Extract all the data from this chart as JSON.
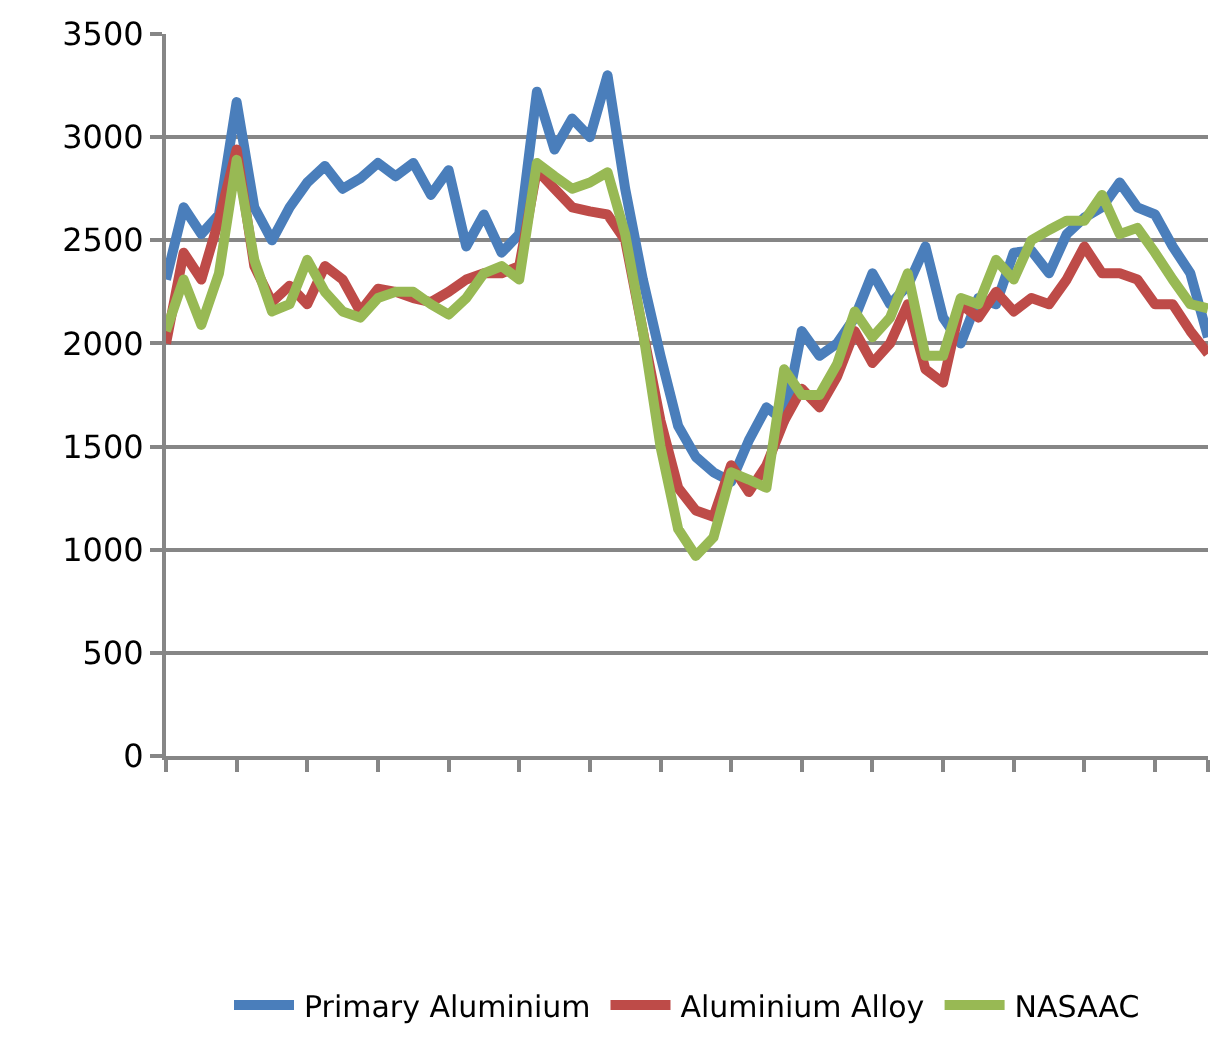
{
  "chart_data": {
    "type": "line",
    "categories": [
      null,
      null,
      null,
      null,
      null,
      null,
      null,
      null,
      null,
      null,
      null,
      null,
      null,
      null,
      null,
      null,
      null,
      null,
      null,
      null,
      null,
      null,
      null,
      null,
      null,
      null,
      null,
      null,
      null,
      null,
      null,
      null,
      null,
      null,
      null,
      null,
      null,
      null,
      null,
      null,
      null,
      null,
      null,
      null,
      null,
      null,
      null,
      null,
      null,
      null,
      null,
      null,
      null,
      null,
      null,
      null,
      null,
      null,
      null,
      null
    ],
    "series": [
      {
        "name": "Primary Aluminium",
        "color": "#4a7ebb",
        "values": [
          2310,
          2660,
          2530,
          2625,
          3170,
          2660,
          2500,
          2660,
          2780,
          2860,
          2750,
          2800,
          2875,
          2810,
          2875,
          2720,
          2840,
          2470,
          2625,
          2440,
          2530,
          3220,
          2940,
          3090,
          3000,
          3300,
          2750,
          2310,
          1940,
          1600,
          1450,
          1375,
          1330,
          1530,
          1690,
          1625,
          2060,
          1940,
          2000,
          2125,
          2340,
          2190,
          2280,
          2470,
          2125,
          2000,
          2220,
          2190,
          2440,
          2450,
          2340,
          2530,
          2610,
          2660,
          2780,
          2660,
          2625,
          2470,
          2340,
          2030
        ]
      },
      {
        "name": "Aluminium Alloy",
        "color": "#be4b48",
        "values": [
          2000,
          2440,
          2310,
          2600,
          2940,
          2375,
          2200,
          2280,
          2190,
          2375,
          2310,
          2155,
          2265,
          2250,
          2220,
          2200,
          2250,
          2310,
          2340,
          2340,
          2375,
          2840,
          2750,
          2660,
          2640,
          2625,
          2500,
          2060,
          1625,
          1300,
          1190,
          1160,
          1410,
          1280,
          1410,
          1625,
          1780,
          1690,
          1840,
          2060,
          1905,
          2000,
          2190,
          1875,
          1810,
          2190,
          2125,
          2250,
          2155,
          2220,
          2190,
          2310,
          2470,
          2340,
          2340,
          2310,
          2190,
          2190,
          2060,
          1950
        ]
      },
      {
        "name": "NASAAC",
        "color": "#98b954",
        "values": [
          2060,
          2310,
          2090,
          2340,
          2890,
          2405,
          2155,
          2190,
          2405,
          2250,
          2155,
          2125,
          2220,
          2250,
          2250,
          2190,
          2140,
          2220,
          2340,
          2375,
          2310,
          2875,
          2810,
          2750,
          2780,
          2830,
          2530,
          2060,
          1500,
          1100,
          970,
          1060,
          1375,
          1340,
          1300,
          1875,
          1750,
          1750,
          1900,
          2155,
          2030,
          2125,
          2340,
          1940,
          1940,
          2220,
          2190,
          2405,
          2310,
          2500,
          2550,
          2595,
          2595,
          2720,
          2530,
          2560,
          2440,
          2310,
          2190,
          2170
        ]
      }
    ],
    "ylim": [
      0,
      3500
    ],
    "yticks": [
      0,
      500,
      1000,
      1500,
      2000,
      2500,
      3000,
      3500
    ],
    "grid": "y",
    "legend": "bottom",
    "marker": "none",
    "line_style": "solid"
  }
}
